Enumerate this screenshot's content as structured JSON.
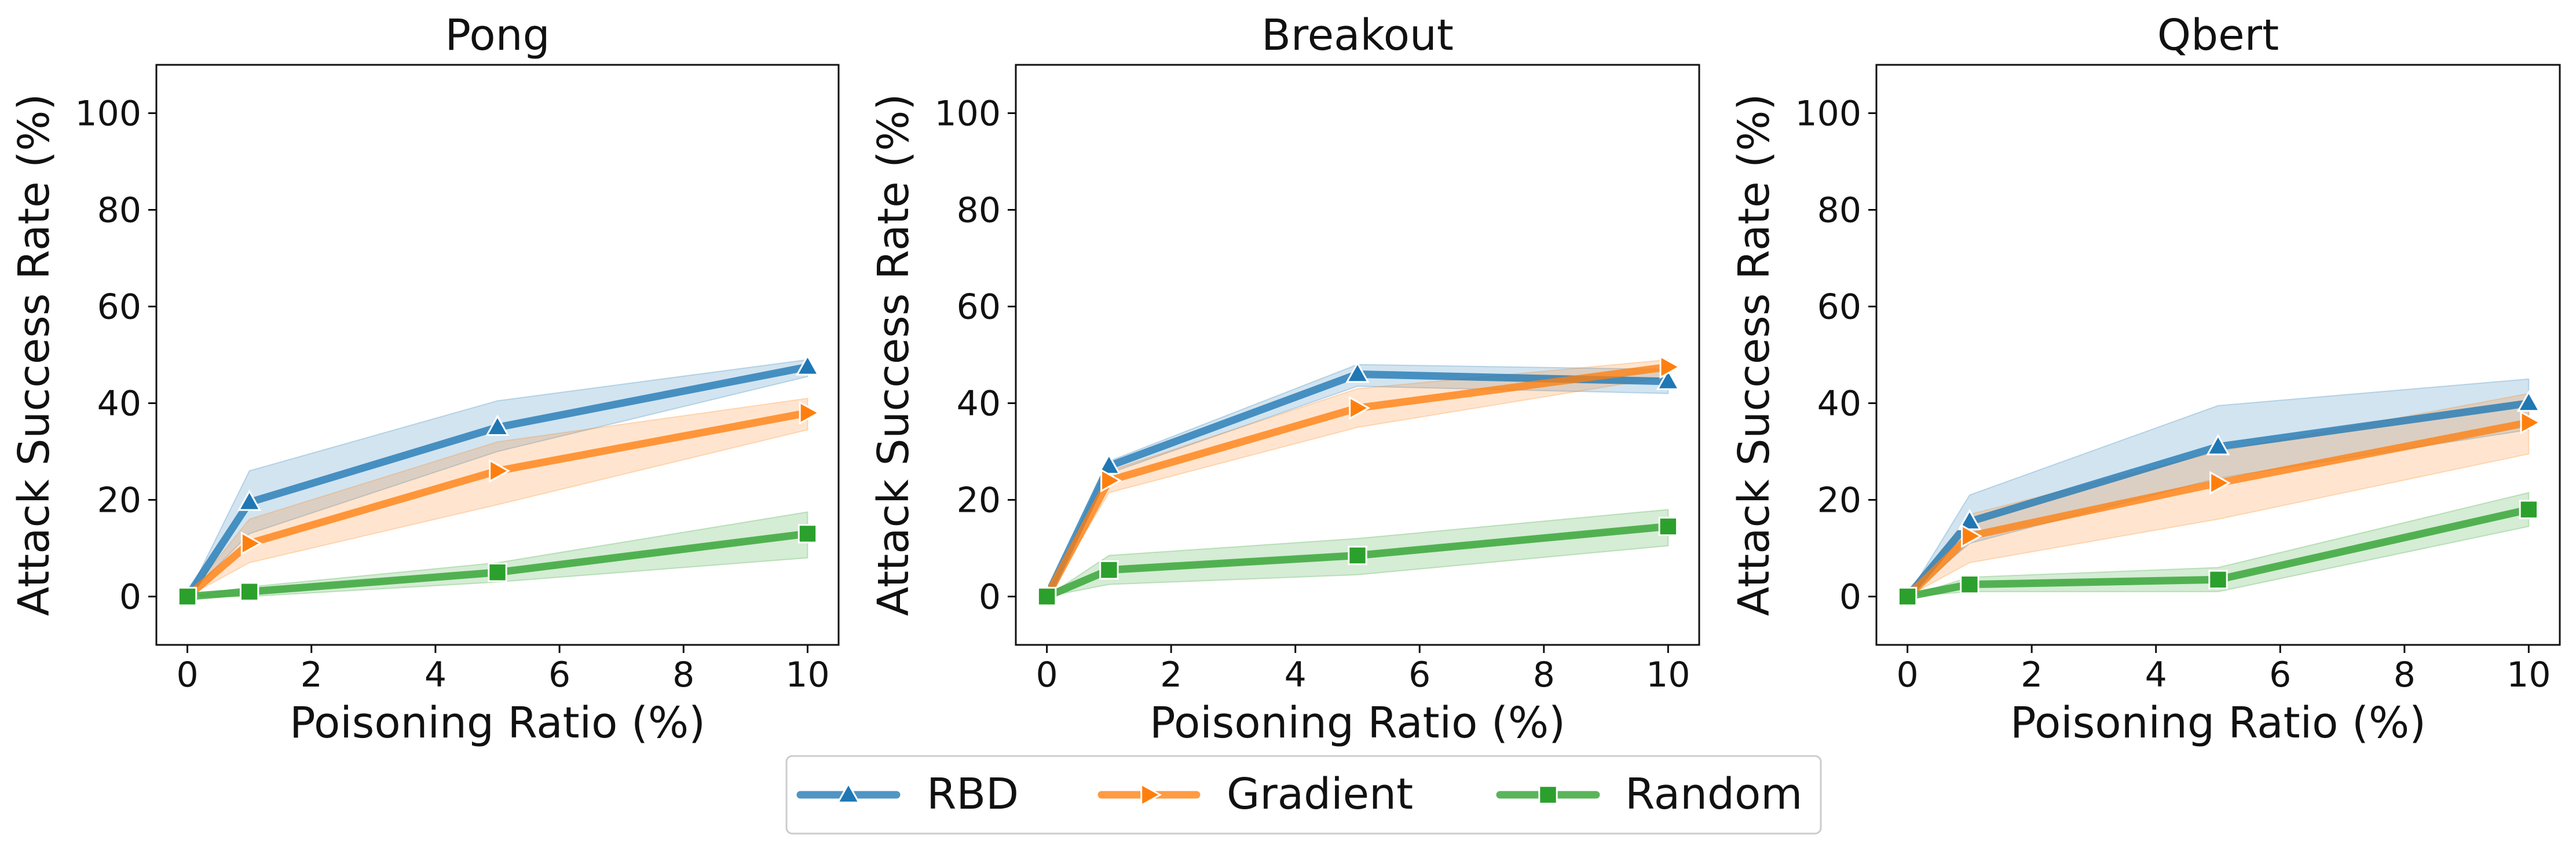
{
  "chart_data": [
    {
      "type": "line",
      "title": "Pong",
      "xlabel": "Poisoning Ratio (%)",
      "ylabel": "Attack Success Rate (%)",
      "xlim": [
        -0.5,
        10.5
      ],
      "ylim": [
        -10,
        110
      ],
      "xticks": [
        0,
        2,
        4,
        6,
        8,
        10
      ],
      "yticks": [
        0,
        20,
        40,
        60,
        80,
        100
      ],
      "x": [
        0,
        1,
        5,
        10
      ],
      "series": [
        {
          "name": "RBD",
          "values": [
            0,
            19.5,
            35,
            47.5
          ],
          "lower": [
            0,
            13,
            30,
            45.5
          ],
          "upper": [
            0,
            26,
            40.5,
            49
          ]
        },
        {
          "name": "Gradient",
          "values": [
            0,
            11,
            26,
            38
          ],
          "lower": [
            0,
            7,
            19,
            34.5
          ],
          "upper": [
            0,
            16,
            32,
            41
          ]
        },
        {
          "name": "Random",
          "values": [
            0,
            1,
            5,
            13
          ],
          "lower": [
            0,
            0,
            3,
            8
          ],
          "upper": [
            0,
            2,
            7,
            17.5
          ]
        }
      ]
    },
    {
      "type": "line",
      "title": "Breakout",
      "xlabel": "Poisoning Ratio (%)",
      "ylabel": "Attack Success Rate (%)",
      "xlim": [
        -0.5,
        10.5
      ],
      "ylim": [
        -10,
        110
      ],
      "xticks": [
        0,
        2,
        4,
        6,
        8,
        10
      ],
      "yticks": [
        0,
        20,
        40,
        60,
        80,
        100
      ],
      "x": [
        0,
        1,
        5,
        10
      ],
      "series": [
        {
          "name": "RBD",
          "values": [
            0,
            27,
            46,
            44.5
          ],
          "lower": [
            0,
            25.5,
            43.5,
            42
          ],
          "upper": [
            0,
            28,
            48,
            47
          ]
        },
        {
          "name": "Gradient",
          "values": [
            0,
            24,
            39,
            47.5
          ],
          "lower": [
            0,
            21.5,
            35,
            45.5
          ],
          "upper": [
            0,
            26,
            43,
            49
          ]
        },
        {
          "name": "Random",
          "values": [
            0,
            5.5,
            8.5,
            14.5
          ],
          "lower": [
            0,
            2.5,
            4.5,
            10.5
          ],
          "upper": [
            0,
            8.5,
            12,
            18
          ]
        }
      ]
    },
    {
      "type": "line",
      "title": "Qbert",
      "xlabel": "Poisoning Ratio (%)",
      "ylabel": "Attack Success Rate (%)",
      "xlim": [
        -0.5,
        10.5
      ],
      "ylim": [
        -10,
        110
      ],
      "xticks": [
        0,
        2,
        4,
        6,
        8,
        10
      ],
      "yticks": [
        0,
        20,
        40,
        60,
        80,
        100
      ],
      "x": [
        0,
        1,
        5,
        10
      ],
      "series": [
        {
          "name": "RBD",
          "values": [
            0,
            15.5,
            31,
            40
          ],
          "lower": [
            0,
            11,
            24.5,
            34.5
          ],
          "upper": [
            0,
            21,
            39.5,
            45
          ]
        },
        {
          "name": "Gradient",
          "values": [
            0,
            12.5,
            23.5,
            36
          ],
          "lower": [
            0,
            7,
            16,
            29.5
          ],
          "upper": [
            0,
            17,
            30,
            42
          ]
        },
        {
          "name": "Random",
          "values": [
            0,
            2.5,
            3.5,
            18
          ],
          "lower": [
            0,
            1,
            1,
            14.5
          ],
          "upper": [
            0,
            4,
            6,
            21.5
          ]
        }
      ]
    }
  ],
  "legend": {
    "position": "bottom-center",
    "items": [
      {
        "name": "RBD",
        "marker": "triangle-up"
      },
      {
        "name": "Gradient",
        "marker": "triangle-right"
      },
      {
        "name": "Random",
        "marker": "square"
      }
    ]
  },
  "colors": {
    "RBD": "#1f77b4",
    "Gradient": "#ff7f0e",
    "Random": "#2ca02c"
  }
}
